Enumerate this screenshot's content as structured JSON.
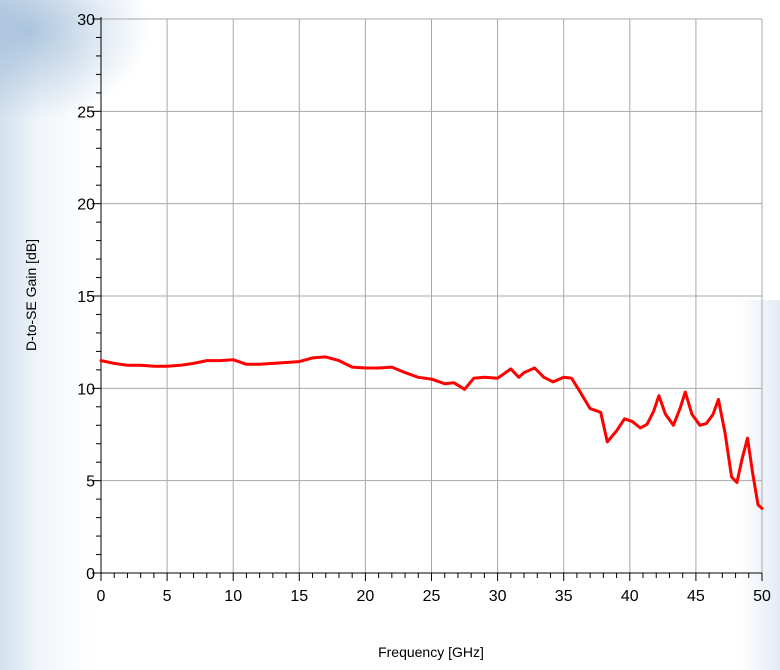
{
  "chart_data": {
    "type": "line",
    "title": "",
    "xlabel": "Frequency [GHz]",
    "ylabel": "D-to-SE Gain [dB]",
    "xlim": [
      0,
      50
    ],
    "ylim": [
      0,
      30
    ],
    "x_ticks": [
      "0",
      "5",
      "10",
      "15",
      "20",
      "25",
      "30",
      "35",
      "40",
      "45",
      "50"
    ],
    "y_ticks": [
      "0",
      "5",
      "10",
      "15",
      "20",
      "25",
      "30"
    ],
    "grid": true,
    "line_color": "#ff0000",
    "series": [
      {
        "x": [
          0,
          1,
          2,
          3,
          4,
          5,
          6,
          7,
          8,
          9,
          10,
          11,
          12,
          13,
          14,
          15,
          16,
          17,
          18,
          19,
          20,
          21,
          22,
          23,
          24,
          25,
          26,
          26.7,
          27.5,
          28.2,
          29,
          30,
          30.5,
          31,
          31.6,
          32,
          32.8,
          33.5,
          34.2,
          35,
          35.6,
          36.2,
          37,
          37.8,
          38.3,
          39,
          39.6,
          40.2,
          40.8,
          41.3,
          41.8,
          42.2,
          42.7,
          43.3,
          43.8,
          44.2,
          44.7,
          45.3,
          45.8,
          46.3,
          46.7,
          47.2,
          47.7,
          48.1,
          48.5,
          48.9,
          49.3,
          49.7,
          50
        ],
        "y": [
          11.5,
          11.35,
          11.25,
          11.25,
          11.2,
          11.2,
          11.25,
          11.35,
          11.5,
          11.5,
          11.55,
          11.3,
          11.3,
          11.35,
          11.4,
          11.45,
          11.65,
          11.7,
          11.5,
          11.15,
          11.1,
          11.1,
          11.15,
          10.85,
          10.6,
          10.5,
          10.25,
          10.3,
          9.95,
          10.55,
          10.6,
          10.55,
          10.8,
          11.05,
          10.6,
          10.85,
          11.1,
          10.6,
          10.35,
          10.6,
          10.55,
          9.85,
          8.9,
          8.7,
          7.1,
          7.7,
          8.35,
          8.2,
          7.85,
          8.05,
          8.75,
          9.6,
          8.6,
          8.0,
          8.9,
          9.8,
          8.6,
          8.0,
          8.1,
          8.6,
          9.4,
          7.6,
          5.2,
          4.9,
          6.2,
          7.3,
          5.4,
          3.7,
          3.5
        ]
      }
    ]
  }
}
